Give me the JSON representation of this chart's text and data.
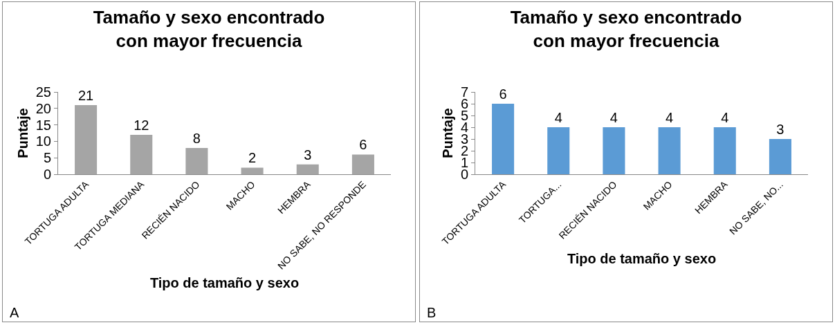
{
  "chart_data": [
    {
      "type": "bar",
      "title": "Tamaño y sexo encontrado con mayor frecuencia",
      "xlabel": "Tipo de tamaño y sexo",
      "ylabel": "Puntaje",
      "categories": [
        "TORTUGA ADULTA",
        "TORTUGA MEDIANA",
        "RECIÉN NACIDO",
        "MACHO",
        "HEMBRA",
        "NO SABE, NO RESPONDE"
      ],
      "values": [
        21,
        12,
        8,
        2,
        3,
        6
      ],
      "color": "#a5a5a5",
      "ylim": [
        0,
        25
      ],
      "yticks": [
        0,
        5,
        10,
        15,
        20,
        25
      ],
      "data_labels": true,
      "annotations": [
        "A"
      ]
    },
    {
      "type": "bar",
      "title": "Tamaño y sexo encontrado con mayor frecuencia",
      "xlabel": "Tipo de tamaño y sexo",
      "ylabel": "Puntaje",
      "categories": [
        "TORTUGA ADULTA",
        "TORTUGA...",
        "RECIÉN NACIDO",
        "MACHO",
        "HEMBRA",
        "NO SABE, NO..."
      ],
      "values": [
        6,
        4,
        4,
        4,
        4,
        3
      ],
      "color": "#5b9bd5",
      "ylim": [
        0,
        7
      ],
      "yticks": [
        0,
        1,
        2,
        3,
        4,
        5,
        6,
        7
      ],
      "data_labels": true,
      "annotations": [
        "B"
      ]
    }
  ]
}
